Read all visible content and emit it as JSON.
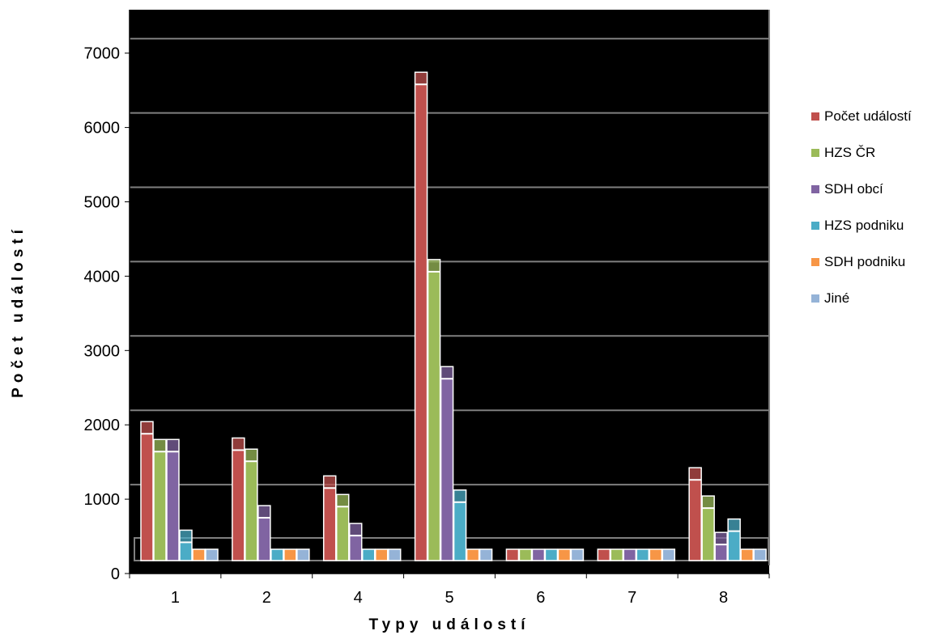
{
  "chart_data": {
    "type": "bar",
    "title": "",
    "xlabel": "Typy událostí",
    "ylabel": "Počet událostí",
    "categories": [
      "1",
      "2",
      "4",
      "5",
      "6",
      "7",
      "8"
    ],
    "ylim": [
      0,
      7500
    ],
    "yticks": [
      0,
      1000,
      2000,
      3000,
      4000,
      5000,
      6000,
      7000
    ],
    "ytick_labels": [
      "0",
      "1000",
      "2000",
      "3000",
      "4000",
      "5000",
      "6000",
      "7000"
    ],
    "grid": true,
    "legend_position": "right",
    "plot_background": "#000000",
    "series": [
      {
        "name": "Počet událostí",
        "color": "#c0504d",
        "values": [
          1880,
          1660,
          1150,
          6580,
          0,
          0,
          1260
        ]
      },
      {
        "name": "HZS ČR",
        "color": "#9bbb59",
        "values": [
          1640,
          1510,
          900,
          4060,
          0,
          0,
          880
        ]
      },
      {
        "name": "SDH obcí",
        "color": "#8064a2",
        "values": [
          1640,
          750,
          510,
          2620,
          0,
          0,
          390
        ]
      },
      {
        "name": "HZS podniku",
        "color": "#4bacc6",
        "values": [
          420,
          290,
          250,
          960,
          0,
          0,
          570
        ]
      },
      {
        "name": "SDH podniku",
        "color": "#f79646",
        "values": [
          0,
          0,
          0,
          0,
          0,
          0,
          0
        ]
      },
      {
        "name": "Jiné",
        "color": "#95b3d7",
        "values": [
          0,
          0,
          0,
          0,
          0,
          0,
          0
        ]
      }
    ]
  }
}
